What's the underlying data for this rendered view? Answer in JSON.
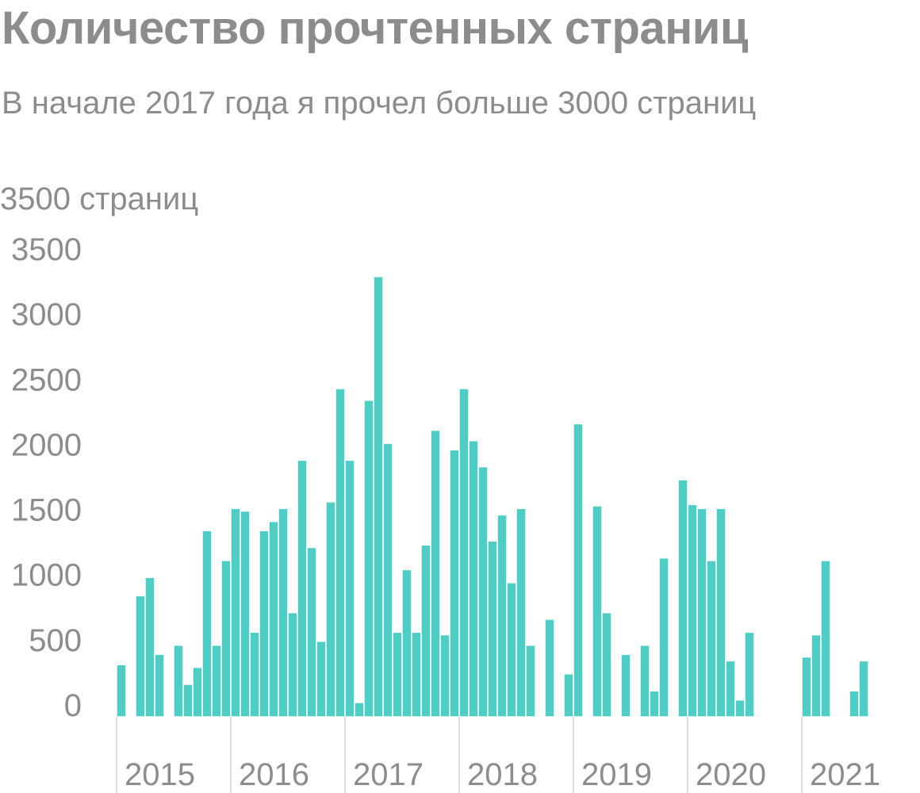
{
  "title": "Количество прочтенных страниц",
  "subtitle": "В начале 2017 года я прочел больше 3000 страниц",
  "colors": {
    "bar": "#4ecdc4",
    "bar_edge": "#ffffff",
    "text": "#8c8c8c",
    "tick": "#d4d4d4"
  },
  "chart_data": {
    "type": "bar",
    "title": "Количество прочтенных страниц",
    "subtitle": "В начале 2017 года я прочел больше 3000 страниц",
    "ylabel": "3500 страниц",
    "xlabel": "",
    "ylim": [
      0,
      3500
    ],
    "yticks": [
      0,
      500,
      1000,
      1500,
      2000,
      2500,
      3000,
      3500
    ],
    "grid": false,
    "x_unit": "month",
    "x_start": "2015-01",
    "x_end": "2021-12",
    "year_labels": [
      "2015",
      "2016",
      "2017",
      "2018",
      "2019",
      "2020",
      "2021"
    ],
    "series": [
      {
        "values": [
          400,
          0,
          930,
          1070,
          480,
          0,
          550,
          250,
          380,
          1430,
          550,
          1200,
          1600,
          1580,
          650,
          1430,
          1500,
          1600,
          800,
          1970,
          1300,
          580,
          1650,
          2520,
          1970,
          110,
          2430,
          3380,
          2100,
          650,
          1130,
          650,
          1320,
          2200,
          630,
          2050,
          2520,
          2120,
          1920,
          1350,
          1550,
          1030,
          1600,
          550,
          0,
          750,
          0,
          330,
          2250,
          0,
          1620,
          800,
          0,
          480,
          0,
          550,
          200,
          1220,
          0,
          1820,
          1630,
          1600,
          1200,
          1600,
          430,
          130,
          650,
          0,
          0,
          0,
          0,
          0,
          460,
          630,
          1200,
          0,
          0,
          200,
          430,
          0,
          0,
          0,
          0,
          0
        ]
      }
    ]
  }
}
